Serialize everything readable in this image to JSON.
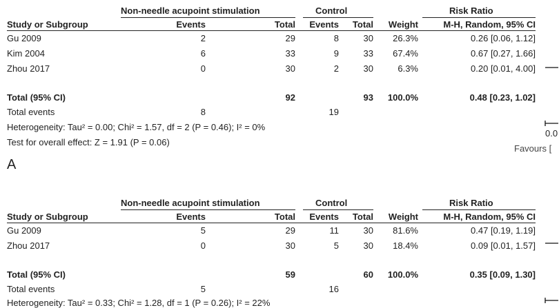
{
  "chart_data": [
    {
      "type": "table",
      "panel_label": "A",
      "headers": {
        "experimental_group": "Non-needle acupoint stimulation",
        "control_group": "Control",
        "risk_ratio_group": "Risk Ratio",
        "study": "Study or Subgroup",
        "events": "Events",
        "total": "Total",
        "c_events": "Events",
        "c_total": "Total",
        "weight": "Weight",
        "method": "M-H, Random, 95% CI"
      },
      "rows": [
        {
          "study": "Gu 2009",
          "e_events": "2",
          "e_total": "29",
          "c_events": "8",
          "c_total": "30",
          "weight": "26.3%",
          "ci_text": "0.26 [0.06, 1.12]",
          "rr": 0.26,
          "lo": 0.06,
          "hi": 1.12
        },
        {
          "study": "Kim 2004",
          "e_events": "6",
          "e_total": "33",
          "c_events": "9",
          "c_total": "33",
          "weight": "67.4%",
          "ci_text": "0.67 [0.27, 1.66]",
          "rr": 0.67,
          "lo": 0.27,
          "hi": 1.66
        },
        {
          "study": "Zhou 2017",
          "e_events": "0",
          "e_total": "30",
          "c_events": "2",
          "c_total": "30",
          "weight": "6.3%",
          "ci_text": "0.20 [0.01, 4.00]",
          "rr": 0.2,
          "lo": 0.01,
          "hi": 4.0
        }
      ],
      "total": {
        "label": "Total (95% CI)",
        "e_total": "92",
        "c_total": "93",
        "weight": "100.0%",
        "ci_text": "0.48 [0.23, 1.02]",
        "rr": 0.48,
        "lo": 0.23,
        "hi": 1.02
      },
      "total_events": {
        "label": "Total events",
        "e_events": "8",
        "c_events": "19"
      },
      "heterogeneity": "Heterogeneity: Tau² = 0.00; Chi² = 1.57, df = 2 (P = 0.46); I² = 0%",
      "overall_effect": "Test for overall effect: Z = 1.91 (P = 0.06)",
      "axis_tick_label": "0.0",
      "favours_label": "Favours [",
      "x_scale": "log"
    },
    {
      "type": "table",
      "panel_label": "",
      "headers": {
        "experimental_group": "Non-needle acupoint stimulation",
        "control_group": "Control",
        "risk_ratio_group": "Risk Ratio",
        "study": "Study or Subgroup",
        "events": "Events",
        "total": "Total",
        "c_events": "Events",
        "c_total": "Total",
        "weight": "Weight",
        "method": "M-H, Random, 95% CI"
      },
      "rows": [
        {
          "study": "Gu 2009",
          "e_events": "5",
          "e_total": "29",
          "c_events": "11",
          "c_total": "30",
          "weight": "81.6%",
          "ci_text": "0.47 [0.19, 1.19]",
          "rr": 0.47,
          "lo": 0.19,
          "hi": 1.19
        },
        {
          "study": "Zhou 2017",
          "e_events": "0",
          "e_total": "30",
          "c_events": "5",
          "c_total": "30",
          "weight": "18.4%",
          "ci_text": "0.09 [0.01, 1.57]",
          "rr": 0.09,
          "lo": 0.01,
          "hi": 1.57
        }
      ],
      "total": {
        "label": "Total (95% CI)",
        "e_total": "59",
        "c_total": "60",
        "weight": "100.0%",
        "ci_text": "0.35 [0.09, 1.30]",
        "rr": 0.35,
        "lo": 0.09,
        "hi": 1.3
      },
      "total_events": {
        "label": "Total events",
        "e_events": "5",
        "c_events": "16"
      },
      "heterogeneity": "Heterogeneity: Tau² = 0.33; Chi² = 1.28, df = 1 (P = 0.26); I² = 22%",
      "x_scale": "log"
    }
  ]
}
